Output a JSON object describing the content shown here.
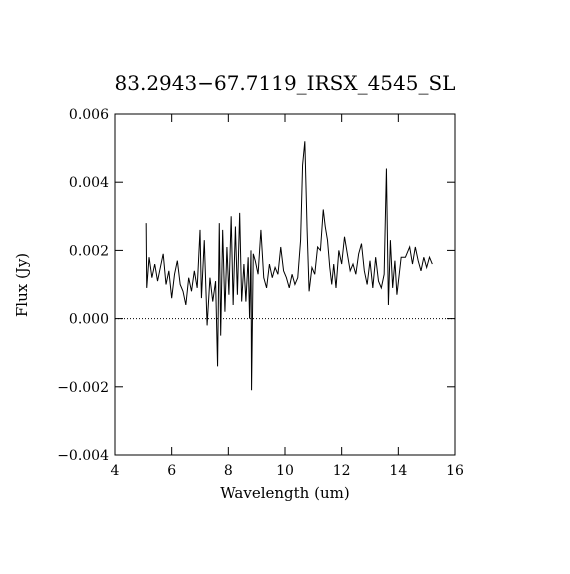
{
  "chart_data": {
    "type": "line",
    "title": "83.2943−67.7119_IRSX_4545_SL",
    "x_label": "Wavelength (um)",
    "y_label": "Flux (Jy)",
    "xlim": [
      4,
      16
    ],
    "ylim": [
      -0.004,
      0.006
    ],
    "xticks": [
      4,
      6,
      8,
      10,
      12,
      14,
      16
    ],
    "yticks": [
      {
        "value": -0.004,
        "label": "−0.004"
      },
      {
        "value": -0.002,
        "label": "−0.002"
      },
      {
        "value": 0,
        "label": "0.000"
      },
      0.002,
      0.004,
      0.006
    ],
    "hline": 0,
    "series": [
      {
        "color": "#000000",
        "x": [
          5.1,
          5.12,
          5.2,
          5.3,
          5.4,
          5.5,
          5.6,
          5.7,
          5.8,
          5.9,
          6.0,
          6.1,
          6.2,
          6.3,
          6.4,
          6.5,
          6.6,
          6.7,
          6.8,
          6.9,
          7.0,
          7.05,
          7.15,
          7.25,
          7.35,
          7.45,
          7.55,
          7.62,
          7.68,
          7.73,
          7.8,
          7.88,
          7.95,
          8.02,
          8.1,
          8.17,
          8.25,
          8.32,
          8.4,
          8.47,
          8.55,
          8.62,
          8.7,
          8.75,
          8.8,
          8.82,
          8.88,
          8.95,
          9.05,
          9.15,
          9.25,
          9.35,
          9.45,
          9.55,
          9.65,
          9.75,
          9.85,
          9.95,
          10.05,
          10.15,
          10.25,
          10.35,
          10.45,
          10.55,
          10.62,
          10.7,
          10.78,
          10.85,
          10.95,
          11.05,
          11.15,
          11.25,
          11.35,
          11.42,
          11.5,
          11.58,
          11.65,
          11.72,
          11.8,
          11.9,
          12.0,
          12.1,
          12.2,
          12.3,
          12.4,
          12.5,
          12.6,
          12.7,
          12.8,
          12.9,
          13.0,
          13.1,
          13.2,
          13.3,
          13.4,
          13.5,
          13.58,
          13.65,
          13.72,
          13.8,
          13.88,
          13.95,
          14.1,
          14.25,
          14.4,
          14.5,
          14.6,
          14.7,
          14.8,
          14.9,
          15.0,
          15.1,
          15.2
        ],
        "values": [
          0.0028,
          0.0009,
          0.0018,
          0.0012,
          0.0016,
          0.0011,
          0.0015,
          0.0019,
          0.001,
          0.0014,
          0.0006,
          0.0013,
          0.0017,
          0.001,
          0.0008,
          0.0004,
          0.0012,
          0.0008,
          0.0014,
          0.0009,
          0.0026,
          0.0006,
          0.0023,
          -0.0002,
          0.0012,
          0.0005,
          0.0011,
          -0.0014,
          0.0028,
          -0.0005,
          0.0026,
          0.0002,
          0.0021,
          0.0007,
          0.003,
          0.0004,
          0.0027,
          0.0007,
          0.0031,
          0.0005,
          0.0016,
          0.0005,
          0.0018,
          0.0,
          0.002,
          -0.0021,
          0.0019,
          0.0017,
          0.0013,
          0.0026,
          0.0012,
          0.0009,
          0.0016,
          0.0012,
          0.0015,
          0.0013,
          0.0021,
          0.0014,
          0.0012,
          0.0009,
          0.0013,
          0.001,
          0.0012,
          0.0023,
          0.0045,
          0.0052,
          0.0026,
          0.0008,
          0.0015,
          0.0013,
          0.0021,
          0.002,
          0.0032,
          0.0027,
          0.0023,
          0.0015,
          0.001,
          0.0016,
          0.0009,
          0.002,
          0.0016,
          0.0024,
          0.0019,
          0.0014,
          0.0016,
          0.0013,
          0.0019,
          0.0022,
          0.0014,
          0.001,
          0.0017,
          0.0009,
          0.0018,
          0.0011,
          0.0009,
          0.0013,
          0.0044,
          0.0004,
          0.0023,
          0.0009,
          0.0017,
          0.0007,
          0.0018,
          0.0018,
          0.0021,
          0.0016,
          0.0021,
          0.0017,
          0.0014,
          0.0018,
          0.0015,
          0.0018,
          0.0016
        ]
      }
    ]
  }
}
